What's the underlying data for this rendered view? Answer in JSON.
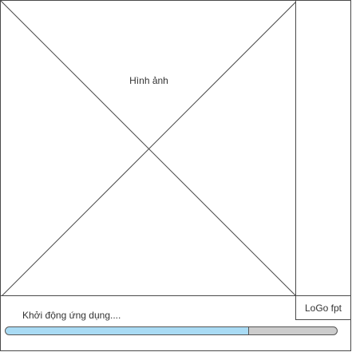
{
  "screen": {
    "name": "loading-screen"
  },
  "image_placeholder": {
    "label": "Hình ảnh"
  },
  "logo": {
    "label": "LoGo fpt"
  },
  "status": {
    "text": "Khởi động ứng dụng...."
  },
  "progress": {
    "value": 0.735,
    "fill_color": "#a9dbf4",
    "track_color": "#cccccc"
  }
}
